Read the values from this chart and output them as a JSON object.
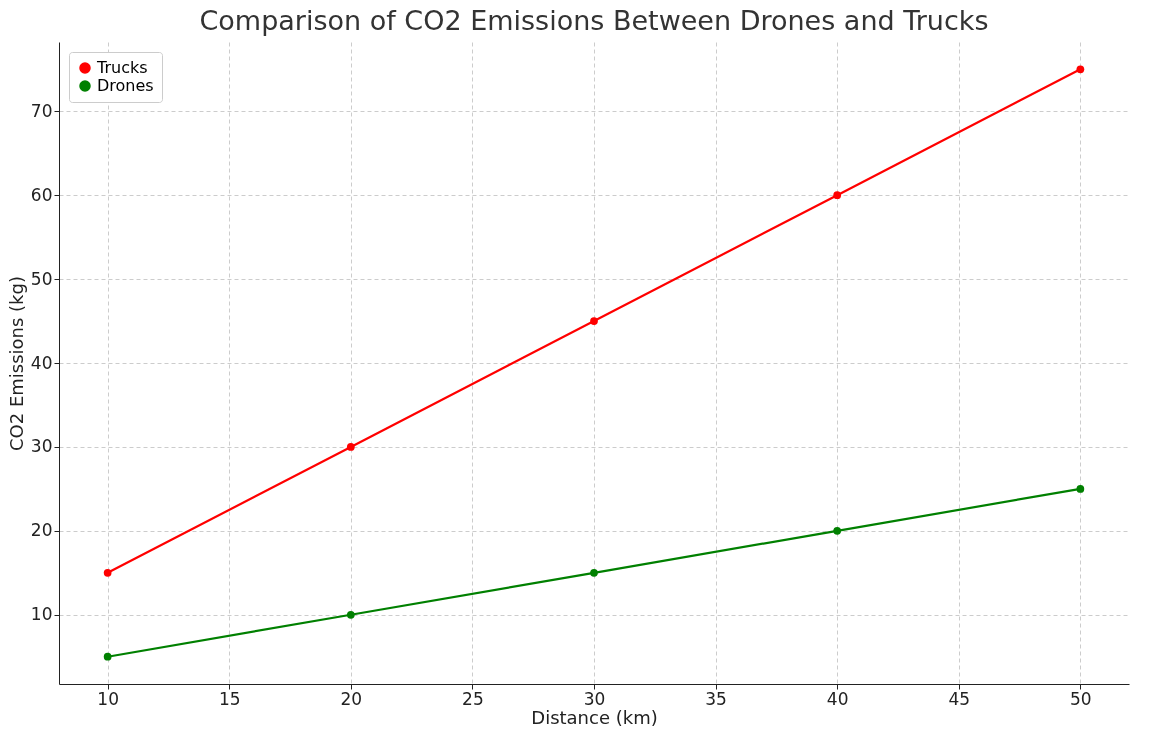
{
  "chart_data": {
    "type": "line",
    "title": "Comparison of CO2 Emissions Between Drones and Trucks",
    "xlabel": "Distance (km)",
    "ylabel": "CO2 Emissions (kg)",
    "x": [
      10,
      20,
      30,
      40,
      50
    ],
    "series": [
      {
        "name": "Trucks",
        "color": "#ff0000",
        "values": [
          15,
          30,
          45,
          60,
          75
        ]
      },
      {
        "name": "Drones",
        "color": "#008000",
        "values": [
          5,
          10,
          15,
          20,
          25
        ]
      }
    ],
    "xlim": [
      8,
      52
    ],
    "ylim": [
      1.75,
      78.25
    ],
    "xticks": [
      10,
      15,
      20,
      25,
      30,
      35,
      40,
      45,
      50
    ],
    "yticks": [
      10,
      20,
      30,
      40,
      50,
      60,
      70
    ],
    "grid": true,
    "legend": "top left",
    "marker": "circle",
    "line_style": "solid"
  }
}
